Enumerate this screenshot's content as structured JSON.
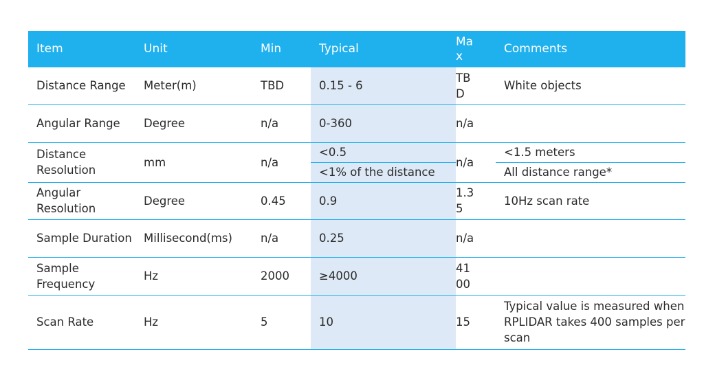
{
  "table": {
    "headers": {
      "item": "Item",
      "unit": "Unit",
      "min": "Min",
      "typical": "Typical",
      "max": "Max",
      "comments": "Comments"
    },
    "rows": {
      "distance_range": {
        "item": "Distance Range",
        "unit": "Meter(m)",
        "min": "TBD",
        "typical": "0.15 - 6",
        "max": "TBD",
        "comments": "White objects"
      },
      "angular_range": {
        "item": "Angular Range",
        "unit": "Degree",
        "min": "n/a",
        "typical": "0-360",
        "max": "n/a",
        "comments": ""
      },
      "distance_resolution": {
        "item": "Distance Resolution",
        "unit": "mm",
        "min": "n/a",
        "typical_1": "<0.5",
        "typical_2": "<1% of the distance",
        "max": "n/a",
        "comments_1": "<1.5 meters",
        "comments_2": "All distance range*"
      },
      "angular_resolution": {
        "item": "Angular Resolution",
        "unit": "Degree",
        "min": "0.45",
        "typical": "0.9",
        "max": "1.35",
        "comments": "10Hz scan rate"
      },
      "sample_duration": {
        "item": "Sample Duration",
        "unit": "Millisecond(ms)",
        "min": "n/a",
        "typical": "0.25",
        "max": "n/a",
        "comments": ""
      },
      "sample_frequency": {
        "item": "Sample Frequency",
        "unit": "Hz",
        "min": "2000",
        "typical": "≥4000",
        "max": "4100",
        "comments": ""
      },
      "scan_rate": {
        "item": "Scan Rate",
        "unit": "Hz",
        "min": "5",
        "typical": "10",
        "max": "15",
        "comments": "Typical value is measured when RPLIDAR takes 400 samples per scan"
      }
    }
  },
  "colors": {
    "header_bg": "#1fb0ee",
    "typical_column_bg": "#dde9f6",
    "row_divider": "#1fb0ee"
  }
}
